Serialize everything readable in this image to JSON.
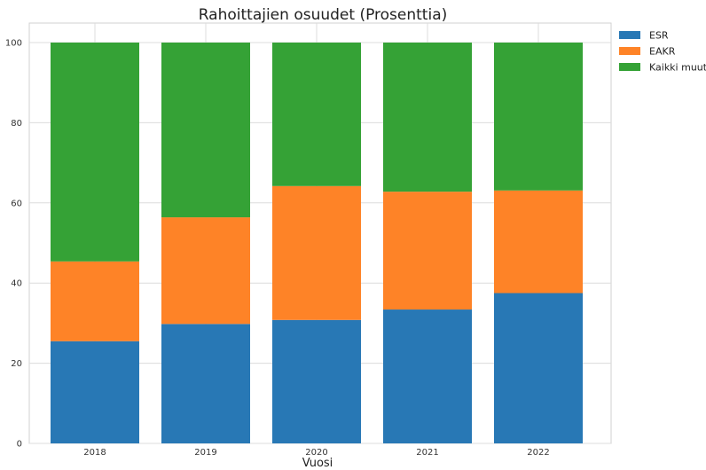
{
  "chart_data": {
    "type": "bar",
    "stacked": true,
    "title": "Rahoittajien osuudet (Prosenttia)",
    "xlabel": "Vuosi",
    "ylabel": "",
    "ylim": [
      0,
      100
    ],
    "yticks": [
      0,
      20,
      40,
      60,
      80,
      100
    ],
    "grid": true,
    "legend_position": "outside-top-right",
    "categories": [
      "2018",
      "2019",
      "2020",
      "2021",
      "2022"
    ],
    "series": [
      {
        "name": "ESR",
        "color": "#2878b5",
        "values": [
          25.5,
          29.8,
          30.8,
          33.4,
          37.5
        ]
      },
      {
        "name": "EAKR",
        "color": "#fe8327",
        "values": [
          19.9,
          26.6,
          33.4,
          29.4,
          25.6
        ]
      },
      {
        "name": "Kaikki muut",
        "color": "#35a236",
        "values": [
          54.6,
          43.6,
          35.8,
          37.2,
          36.9
        ]
      }
    ]
  }
}
